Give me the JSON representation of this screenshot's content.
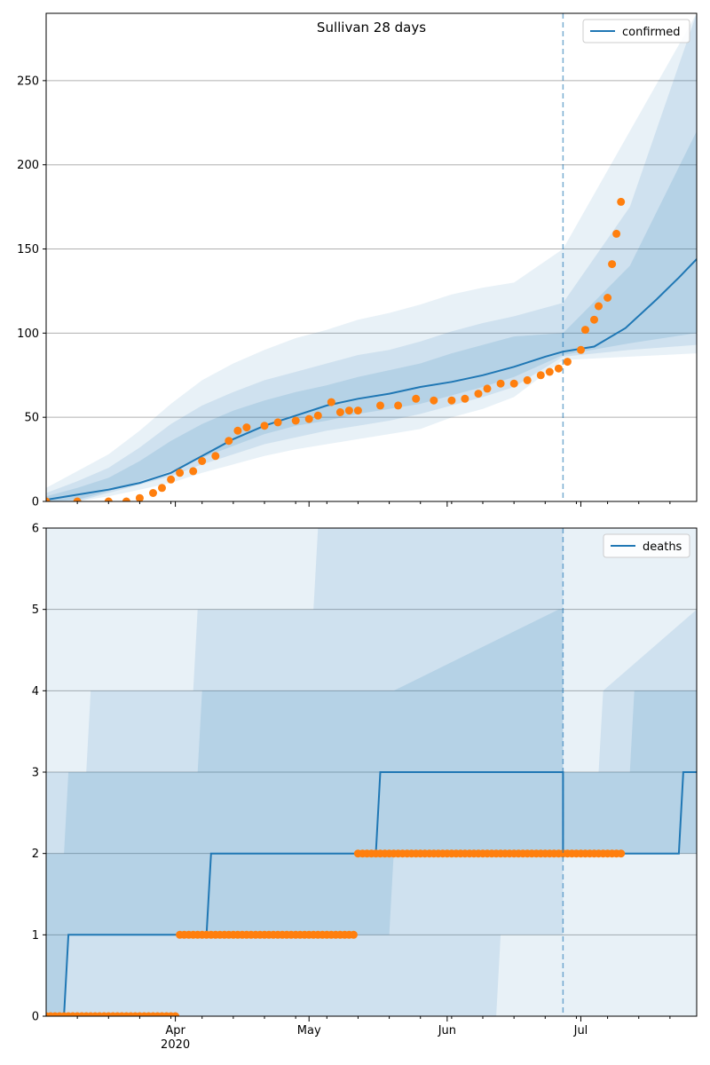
{
  "chart_data": [
    {
      "type": "line",
      "title": "Sullivan 28 days",
      "xlabel": "",
      "ylabel": "",
      "x_range": [
        "2020-03-03",
        "2020-07-27"
      ],
      "ylim": [
        0,
        290
      ],
      "yticks": [
        0,
        50,
        100,
        150,
        200,
        250
      ],
      "grid": "horizontal",
      "legend_position": "top-right",
      "forecast_start": "2020-06-27",
      "series": [
        {
          "name": "confirmed",
          "kind": "line",
          "color": "#1f77b4",
          "x": [
            "2020-03-03",
            "2020-03-10",
            "2020-03-17",
            "2020-03-24",
            "2020-03-31",
            "2020-04-07",
            "2020-04-14",
            "2020-04-21",
            "2020-04-28",
            "2020-05-05",
            "2020-05-12",
            "2020-05-19",
            "2020-05-26",
            "2020-06-02",
            "2020-06-09",
            "2020-06-16",
            "2020-06-23",
            "2020-06-27",
            "2020-07-04",
            "2020-07-11",
            "2020-07-18",
            "2020-07-23",
            "2020-07-27"
          ],
          "y": [
            1,
            4,
            7,
            11,
            17,
            27,
            37,
            45,
            51,
            57,
            61,
            64,
            68,
            71,
            75,
            80,
            86,
            89,
            92,
            103,
            120,
            133,
            144
          ]
        },
        {
          "kind": "scatter",
          "color": "#ff7f0e",
          "x": [
            "2020-03-03",
            "2020-03-10",
            "2020-03-17",
            "2020-03-21",
            "2020-03-24",
            "2020-03-27",
            "2020-03-29",
            "2020-03-31",
            "2020-04-02",
            "2020-04-05",
            "2020-04-07",
            "2020-04-10",
            "2020-04-13",
            "2020-04-15",
            "2020-04-17",
            "2020-04-21",
            "2020-04-24",
            "2020-04-28",
            "2020-05-01",
            "2020-05-03",
            "2020-05-06",
            "2020-05-08",
            "2020-05-10",
            "2020-05-12",
            "2020-05-17",
            "2020-05-21",
            "2020-05-25",
            "2020-05-29",
            "2020-06-02",
            "2020-06-05",
            "2020-06-08",
            "2020-06-10",
            "2020-06-13",
            "2020-06-16",
            "2020-06-19",
            "2020-06-22",
            "2020-06-24",
            "2020-06-26",
            "2020-06-28",
            "2020-07-01",
            "2020-07-02",
            "2020-07-04",
            "2020-07-05",
            "2020-07-07",
            "2020-07-08",
            "2020-07-09",
            "2020-07-10"
          ],
          "y": [
            0,
            0,
            0,
            0,
            2,
            5,
            8,
            13,
            17,
            18,
            24,
            27,
            36,
            42,
            44,
            45,
            47,
            48,
            49,
            51,
            59,
            53,
            54,
            54,
            57,
            57,
            61,
            60,
            60,
            61,
            64,
            67,
            70,
            70,
            72,
            75,
            77,
            79,
            83,
            90,
            102,
            108,
            116,
            121,
            141,
            159,
            178
          ]
        }
      ],
      "bands": [
        {
          "opacity": 0.1,
          "upper": [
            8,
            18,
            28,
            42,
            58,
            72,
            82,
            90,
            97,
            102,
            108,
            112,
            117,
            123,
            127,
            130,
            150,
            220,
            290
          ],
          "lower": [
            0,
            0,
            3,
            7,
            11,
            17,
            22,
            27,
            31,
            34,
            37,
            40,
            43,
            50,
            55,
            62,
            84,
            86,
            88
          ]
        },
        {
          "opacity": 0.12,
          "upper": [
            5,
            12,
            20,
            32,
            46,
            57,
            65,
            72,
            77,
            82,
            87,
            90,
            95,
            101,
            106,
            110,
            118,
            175,
            290
          ],
          "lower": [
            0,
            0,
            5,
            10,
            15,
            22,
            28,
            34,
            38,
            42,
            45,
            48,
            52,
            57,
            62,
            68,
            86,
            90,
            93
          ]
        },
        {
          "opacity": 0.14,
          "upper": [
            3,
            8,
            14,
            24,
            36,
            46,
            54,
            60,
            65,
            69,
            74,
            78,
            82,
            88,
            93,
            98,
            100,
            140,
            220
          ],
          "lower": [
            0,
            1,
            6,
            12,
            18,
            26,
            33,
            40,
            45,
            48,
            52,
            55,
            58,
            63,
            68,
            74,
            87,
            94,
            100
          ]
        }
      ],
      "band_x": [
        "2020-03-03",
        "2020-03-10",
        "2020-03-17",
        "2020-03-24",
        "2020-03-31",
        "2020-04-07",
        "2020-04-14",
        "2020-04-21",
        "2020-04-28",
        "2020-05-05",
        "2020-05-12",
        "2020-05-19",
        "2020-05-26",
        "2020-06-02",
        "2020-06-09",
        "2020-06-16",
        "2020-06-27",
        "2020-07-12",
        "2020-07-27"
      ]
    },
    {
      "type": "line",
      "title": "",
      "xlabel": "",
      "ylabel": "",
      "x_range": [
        "2020-03-03",
        "2020-07-27"
      ],
      "ylim": [
        0,
        6
      ],
      "yticks": [
        0,
        1,
        2,
        3,
        4,
        5,
        6
      ],
      "grid": "horizontal",
      "legend_position": "top-right",
      "forecast_start": "2020-06-27",
      "series": [
        {
          "name": "deaths",
          "kind": "step",
          "color": "#1f77b4",
          "x": [
            "2020-03-03",
            "2020-03-07",
            "2020-03-08",
            "2020-04-08",
            "2020-04-09",
            "2020-05-16",
            "2020-05-17",
            "2020-06-27",
            "2020-06-27",
            "2020-07-23",
            "2020-07-24",
            "2020-07-27"
          ],
          "y": [
            0,
            0,
            1,
            1,
            2,
            2,
            3,
            3,
            2,
            2,
            3,
            3
          ]
        },
        {
          "kind": "scatter",
          "color": "#ff7f0e",
          "segments": [
            {
              "from": "2020-03-03",
              "to": "2020-04-01",
              "value": 0
            },
            {
              "from": "2020-04-02",
              "to": "2020-05-11",
              "value": 1
            },
            {
              "from": "2020-05-12",
              "to": "2020-07-10",
              "value": 2
            }
          ]
        }
      ],
      "bands": [
        {
          "opacity": 0.1,
          "x": [
            "2020-03-03",
            "2020-03-12",
            "2020-05-02",
            "2020-05-03",
            "2020-07-15",
            "2020-07-16",
            "2020-07-27"
          ],
          "upper": [
            6,
            6,
            6,
            6,
            6,
            6,
            6
          ],
          "lower": [
            0,
            0,
            0,
            0,
            0,
            0,
            0
          ]
        },
        {
          "opacity": 0.12,
          "x": [
            "2020-03-03",
            "2020-03-12",
            "2020-03-13",
            "2020-04-05",
            "2020-04-06",
            "2020-05-02",
            "2020-05-03",
            "2020-06-12",
            "2020-06-13",
            "2020-06-27",
            "2020-06-27",
            "2020-07-05",
            "2020-07-06",
            "2020-07-27"
          ],
          "upper": [
            3,
            3,
            4,
            4,
            5,
            5,
            6,
            6,
            6,
            6,
            3,
            3,
            4,
            5
          ],
          "lower": [
            0,
            0,
            0,
            0,
            0,
            0,
            0,
            0,
            1,
            1,
            2,
            2,
            2,
            2
          ]
        },
        {
          "opacity": 0.14,
          "x": [
            "2020-03-03",
            "2020-03-07",
            "2020-03-08",
            "2020-04-06",
            "2020-04-07",
            "2020-05-19",
            "2020-05-20",
            "2020-06-26",
            "2020-06-27",
            "2020-06-27",
            "2020-07-12",
            "2020-07-13",
            "2020-07-27"
          ],
          "upper": [
            2,
            2,
            3,
            3,
            4,
            4,
            4,
            5,
            5,
            3,
            3,
            4,
            4
          ],
          "lower": [
            0,
            0,
            1,
            1,
            1,
            1,
            2,
            2,
            2,
            2,
            2,
            2,
            2
          ]
        }
      ]
    }
  ],
  "x_tick_labels": [
    {
      "date": "2020-04-01",
      "label": "Apr",
      "sublabel": "2020"
    },
    {
      "date": "2020-05-01",
      "label": "May",
      "sublabel": ""
    },
    {
      "date": "2020-06-01",
      "label": "Jun",
      "sublabel": ""
    },
    {
      "date": "2020-07-01",
      "label": "Jul",
      "sublabel": ""
    }
  ],
  "colors": {
    "line": "#1f77b4",
    "points": "#ff7f0e",
    "band": "#1f77b4",
    "grid": "#b0b0b0",
    "forecast_line": "#1f77b4"
  }
}
